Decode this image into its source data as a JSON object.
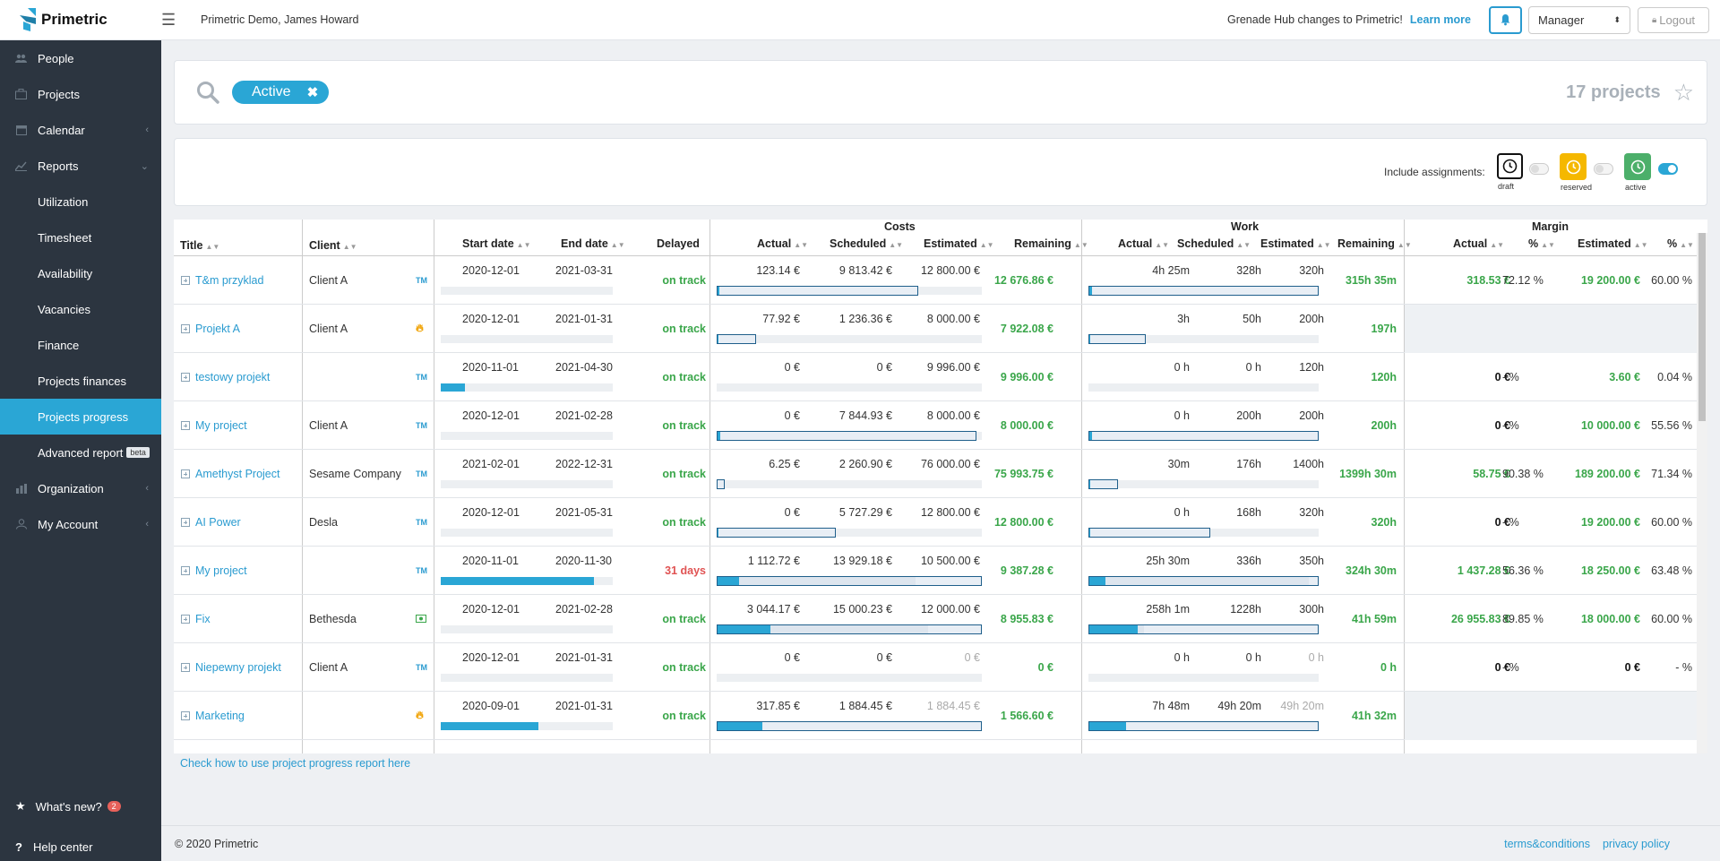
{
  "topbar": {
    "brand": "Primetric",
    "context": "Primetric Demo, James Howard",
    "announcement": "Grenade Hub changes to Primetric!",
    "learn_more": "Learn more",
    "role": "Manager",
    "logout": "Logout"
  },
  "sidebar": {
    "items": [
      {
        "label": "People",
        "icon": "people-icon"
      },
      {
        "label": "Projects",
        "icon": "projects-icon"
      },
      {
        "label": "Calendar",
        "icon": "calendar-icon"
      },
      {
        "label": "Reports",
        "icon": "reports-icon"
      }
    ],
    "reports_sub": [
      "Utilization",
      "Timesheet",
      "Availability",
      "Vacancies",
      "Finance",
      "Projects finances",
      "Projects progress",
      "Advanced report"
    ],
    "beta": "beta",
    "items2": [
      {
        "label": "Organization",
        "icon": "organization-icon"
      },
      {
        "label": "My Account",
        "icon": "account-icon"
      }
    ],
    "whats_new": "What's new?",
    "whats_new_count": "2",
    "help_center": "Help center"
  },
  "search": {
    "filter_chip": "Active",
    "project_count": "17 projects"
  },
  "options": {
    "include_label": "Include assignments:",
    "draft": "draft",
    "reserved": "reserved",
    "active": "active",
    "colors": {
      "draft": "#ffffff",
      "reserved": "#f5b800",
      "active": "#4caf6a"
    }
  },
  "table": {
    "headers": {
      "title": "Title",
      "client": "Client",
      "start": "Start date",
      "end": "End date",
      "delayed": "Delayed",
      "costs_group": "Costs",
      "costs_actual": "Actual",
      "costs_scheduled": "Scheduled",
      "costs_estimated": "Estimated",
      "costs_remaining": "Remaining",
      "work_group": "Work",
      "work_actual": "Actual",
      "work_scheduled": "Scheduled",
      "work_estimated": "Estimated",
      "work_remaining": "Remaining",
      "margin_group": "Margin",
      "margin_actual": "Actual",
      "margin_actual_pct": "%",
      "margin_estimated": "Estimated",
      "margin_estimated_pct": "%"
    },
    "rows": [
      {
        "title": "T&m przyklad",
        "client": "Client A",
        "type": "TM",
        "start": "2020-12-01",
        "end": "2021-03-31",
        "delayed": "on track",
        "time_progress": 0,
        "c_actual": "123.14 €",
        "c_sched": "9 813.42 €",
        "c_est": "12 800.00 €",
        "c_rem": "12 676.86 €",
        "c_fill": 0.01,
        "c_box": 0.76,
        "w_actual": "4h 25m",
        "w_sched": "328h",
        "w_est": "320h",
        "w_rem": "315h 35m",
        "w_fill": 0.01,
        "w_box": 1.0,
        "m_actual": "318.53 €",
        "m_actual_pct": "72.12 %",
        "m_est": "19 200.00 €",
        "m_est_pct": "60.00 %"
      },
      {
        "title": "Projekt A",
        "client": "Client A",
        "type": "FIRE",
        "start": "2020-12-01",
        "end": "2021-01-31",
        "delayed": "on track",
        "time_progress": 0,
        "c_actual": "77.92 €",
        "c_sched": "1 236.36 €",
        "c_est": "8 000.00 €",
        "c_rem": "7 922.08 €",
        "c_fill": 0.01,
        "c_box": 0.15,
        "w_actual": "3h",
        "w_sched": "50h",
        "w_est": "200h",
        "w_rem": "197h",
        "w_fill": 0.01,
        "w_box": 0.25,
        "m_actual": "",
        "m_actual_pct": "",
        "m_est": "",
        "m_est_pct": "",
        "margin_na": true
      },
      {
        "title": "testowy projekt",
        "client": "",
        "type": "TM",
        "start": "2020-11-01",
        "end": "2021-04-30",
        "delayed": "on track",
        "time_progress": 0.14,
        "c_actual": "0 €",
        "c_sched": "0 €",
        "c_est": "9 996.00 €",
        "c_rem": "9 996.00 €",
        "c_fill": 0,
        "c_box": 0,
        "w_actual": "0 h",
        "w_sched": "0 h",
        "w_est": "120h",
        "w_rem": "120h",
        "w_fill": 0,
        "w_box": 0,
        "m_actual": "0 €",
        "m_actual_pct": "- %",
        "m_est": "3.60 €",
        "m_est_pct": "0.04 %"
      },
      {
        "title": "My project",
        "client": "Client A",
        "type": "TM",
        "start": "2020-12-01",
        "end": "2021-02-28",
        "delayed": "on track",
        "time_progress": 0,
        "c_actual": "0 €",
        "c_sched": "7 844.93 €",
        "c_est": "8 000.00 €",
        "c_rem": "8 000.00 €",
        "c_fill": 0,
        "c_box": 0.98,
        "w_actual": "0 h",
        "w_sched": "200h",
        "w_est": "200h",
        "w_rem": "200h",
        "w_fill": 0,
        "w_box": 1.0,
        "m_actual": "0 €",
        "m_actual_pct": "- %",
        "m_est": "10 000.00 €",
        "m_est_pct": "55.56 %"
      },
      {
        "title": "Amethyst Project",
        "client": "Sesame Company",
        "type": "TM",
        "start": "2021-02-01",
        "end": "2022-12-31",
        "delayed": "on track",
        "time_progress": 0,
        "c_actual": "6.25 €",
        "c_sched": "2 260.90 €",
        "c_est": "76 000.00 €",
        "c_rem": "75 993.75 €",
        "c_fill": 0.0,
        "c_box": 0.03,
        "w_actual": "30m",
        "w_sched": "176h",
        "w_est": "1400h",
        "w_rem": "1399h 30m",
        "w_fill": 0.0,
        "w_box": 0.13,
        "m_actual": "58.75 €",
        "m_actual_pct": "90.38 %",
        "m_est": "189 200.00 €",
        "m_est_pct": "71.34 %"
      },
      {
        "title": "AI Power",
        "client": "Desla",
        "type": "TM",
        "start": "2020-12-01",
        "end": "2021-05-31",
        "delayed": "on track",
        "time_progress": 0,
        "c_actual": "0 €",
        "c_sched": "5 727.29 €",
        "c_est": "12 800.00 €",
        "c_rem": "12 800.00 €",
        "c_fill": 0,
        "c_box": 0.45,
        "w_actual": "0 h",
        "w_sched": "168h",
        "w_est": "320h",
        "w_rem": "320h",
        "w_fill": 0,
        "w_box": 0.53,
        "m_actual": "0 €",
        "m_actual_pct": "- %",
        "m_est": "19 200.00 €",
        "m_est_pct": "60.00 %"
      },
      {
        "title": "My project",
        "client": "",
        "type": "TM",
        "start": "2020-11-01",
        "end": "2020-11-30",
        "delayed": "31 days",
        "delayed_bad": true,
        "time_progress": 0.89,
        "c_actual": "1 112.72 €",
        "c_sched": "13 929.18 €",
        "c_est": "10 500.00 €",
        "c_rem": "9 387.28 €",
        "c_fill": 0.08,
        "c_box": 1.0,
        "c_sched_fill": 0.75,
        "w_actual": "25h 30m",
        "w_sched": "336h",
        "w_est": "350h",
        "w_rem": "324h 30m",
        "w_fill": 0.07,
        "w_box": 1.0,
        "w_sched_fill": 0.96,
        "m_actual": "1 437.28 €",
        "m_actual_pct": "56.36 %",
        "m_est": "18 250.00 €",
        "m_est_pct": "63.48 %"
      },
      {
        "title": "Fix",
        "client": "Bethesda",
        "type": "MONEY",
        "start": "2020-12-01",
        "end": "2021-02-28",
        "delayed": "on track",
        "time_progress": 0,
        "c_actual": "3 044.17 €",
        "c_sched": "15 000.23 €",
        "c_est": "12 000.00 €",
        "c_rem": "8 955.83 €",
        "c_fill": 0.2,
        "c_box": 1.0,
        "c_sched_fill": 0.8,
        "w_actual": "258h 1m",
        "w_sched": "1228h",
        "w_est": "300h",
        "w_rem": "41h 59m",
        "w_fill": 0.21,
        "w_box": 1.0,
        "w_sched_fill": 0.24,
        "m_actual": "26 955.83 €",
        "m_actual_pct": "89.85 %",
        "m_est": "18 000.00 €",
        "m_est_pct": "60.00 %"
      },
      {
        "title": "Niepewny projekt",
        "client": "Client A",
        "type": "TM",
        "start": "2020-12-01",
        "end": "2021-01-31",
        "delayed": "on track",
        "time_progress": 0,
        "c_actual": "0 €",
        "c_sched": "0 €",
        "c_est": "0 €",
        "c_est_muted": true,
        "c_rem": "0 €",
        "c_fill": 0,
        "c_box": 0,
        "w_actual": "0 h",
        "w_sched": "0 h",
        "w_est": "0 h",
        "w_est_muted": true,
        "w_rem": "0 h",
        "w_fill": 0,
        "w_box": 0,
        "m_actual": "0 €",
        "m_actual_pct": "- %",
        "m_est": "0 €",
        "m_est_pct": "- %",
        "m_black": true
      },
      {
        "title": "Marketing",
        "client": "",
        "type": "FIRE",
        "start": "2020-09-01",
        "end": "2021-01-31",
        "delayed": "on track",
        "time_progress": 0.57,
        "c_actual": "317.85 €",
        "c_sched": "1 884.45 €",
        "c_est": "1 884.45 €",
        "c_est_muted": true,
        "c_rem": "1 566.60 €",
        "c_fill": 0.17,
        "c_box": 1.0,
        "w_actual": "7h 48m",
        "w_sched": "49h 20m",
        "w_est": "49h 20m",
        "w_est_muted": true,
        "w_rem": "41h 32m",
        "w_fill": 0.16,
        "w_box": 1.0,
        "m_actual": "",
        "m_actual_pct": "",
        "m_est": "",
        "m_est_pct": "",
        "margin_na": true
      }
    ]
  },
  "help_link": "Check how to use project progress report here",
  "footer": {
    "copyright": "© 2020 Primetric",
    "terms": "terms&conditions",
    "privacy": "privacy policy"
  }
}
